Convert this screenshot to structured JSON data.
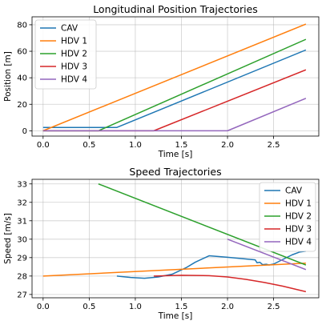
{
  "chart_data": [
    {
      "type": "line",
      "title": "Longitudinal Position Trajectories",
      "xlabel": "Time [s]",
      "ylabel": "Position [m]",
      "xlim": [
        -0.12,
        2.99
      ],
      "ylim": [
        -4,
        86
      ],
      "xticks": [
        0.0,
        0.5,
        1.0,
        1.5,
        2.0,
        2.5
      ],
      "xtick_labels": [
        "0.0",
        "0.5",
        "1.0",
        "1.5",
        "2.0",
        "2.5"
      ],
      "yticks": [
        0,
        20,
        40,
        60,
        80
      ],
      "ytick_labels": [
        "0",
        "20",
        "40",
        "60",
        "80"
      ],
      "grid": true,
      "legend_position": "upper-left",
      "series": [
        {
          "name": "CAV",
          "color": "#1f77b4",
          "x": [
            0.0,
            0.8,
            2.85
          ],
          "y": [
            2.5,
            2.5,
            61.0
          ]
        },
        {
          "name": "HDV 1",
          "color": "#ff7f0e",
          "x": [
            0.0,
            2.85
          ],
          "y": [
            0.0,
            80.5
          ]
        },
        {
          "name": "HDV 2",
          "color": "#2ca02c",
          "x": [
            0.0,
            0.6,
            2.85
          ],
          "y": [
            0.0,
            0.0,
            69.0
          ]
        },
        {
          "name": "HDV 3",
          "color": "#d62728",
          "x": [
            0.0,
            1.2,
            2.85
          ],
          "y": [
            0.0,
            0.0,
            46.0
          ]
        },
        {
          "name": "HDV 4",
          "color": "#9467bd",
          "x": [
            0.0,
            2.0,
            2.85
          ],
          "y": [
            0.0,
            0.0,
            24.5
          ]
        }
      ]
    },
    {
      "type": "line",
      "title": "Speed Trajectories",
      "xlabel": "Time [s]",
      "ylabel": "Speed [m/s]",
      "xlim": [
        -0.12,
        2.99
      ],
      "ylim": [
        26.82,
        33.25
      ],
      "xticks": [
        0.0,
        0.5,
        1.0,
        1.5,
        2.0,
        2.5
      ],
      "xtick_labels": [
        "0.0",
        "0.5",
        "1.0",
        "1.5",
        "2.0",
        "2.5"
      ],
      "yticks": [
        27,
        28,
        29,
        30,
        31,
        32,
        33
      ],
      "ytick_labels": [
        "27",
        "28",
        "29",
        "30",
        "31",
        "32",
        "33"
      ],
      "grid": true,
      "legend_position": "upper-right",
      "series": [
        {
          "name": "CAV",
          "color": "#1f77b4",
          "x": [
            0.8,
            0.95,
            1.1,
            1.25,
            1.4,
            1.55,
            1.65,
            1.8,
            2.0,
            2.15,
            2.3,
            2.32,
            2.35,
            2.38,
            2.42,
            2.45,
            2.5,
            2.6,
            2.7,
            2.78,
            2.85
          ],
          "y": [
            28.0,
            27.92,
            27.88,
            27.95,
            28.1,
            28.45,
            28.75,
            29.1,
            29.02,
            28.95,
            28.88,
            28.72,
            28.75,
            28.62,
            28.64,
            28.6,
            28.65,
            28.9,
            29.15,
            29.3,
            29.35
          ]
        },
        {
          "name": "HDV 1",
          "color": "#ff7f0e",
          "x": [
            0.0,
            2.85
          ],
          "y": [
            28.0,
            28.7
          ]
        },
        {
          "name": "HDV 2",
          "color": "#2ca02c",
          "x": [
            0.6,
            2.85
          ],
          "y": [
            33.0,
            28.6
          ]
        },
        {
          "name": "HDV 3",
          "color": "#d62728",
          "x": [
            1.2,
            1.5,
            1.8,
            2.0,
            2.2,
            2.4,
            2.6,
            2.85
          ],
          "y": [
            28.0,
            28.04,
            28.02,
            27.95,
            27.82,
            27.65,
            27.45,
            27.15
          ]
        },
        {
          "name": "HDV 4",
          "color": "#9467bd",
          "x": [
            2.0,
            2.85
          ],
          "y": [
            30.0,
            28.35
          ]
        }
      ]
    }
  ]
}
